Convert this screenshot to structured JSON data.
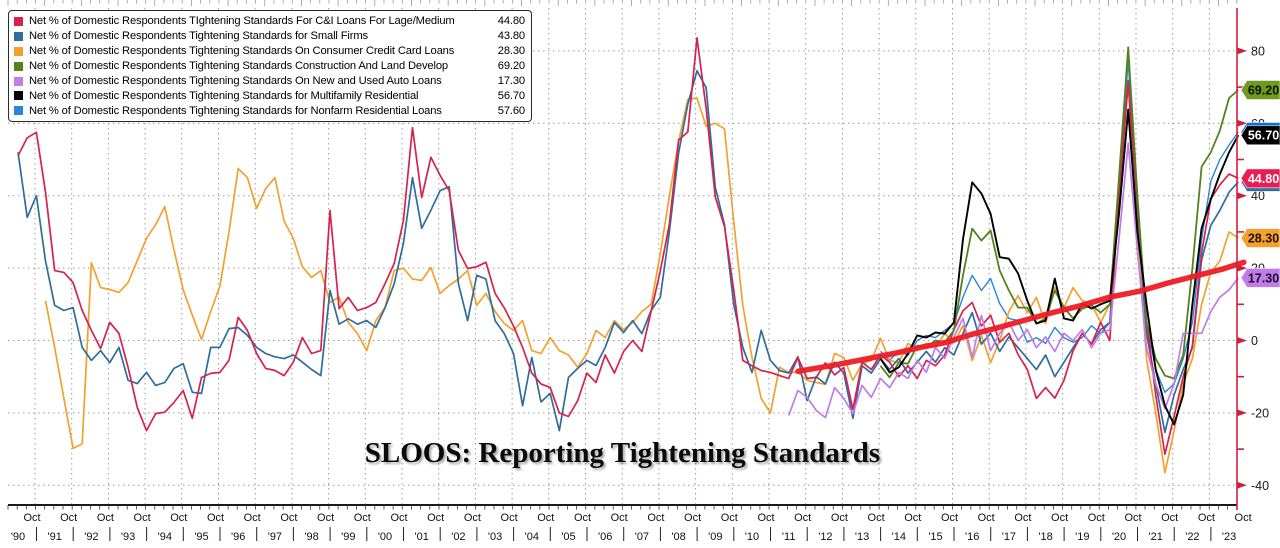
{
  "header": {
    "title": "SLOOS: Reporting Tightening Standards"
  },
  "legend": {
    "items": [
      {
        "label": "Net % of Domestic Respondents TIghtening Standards For C&I Loans For Lage/Medium",
        "value": "44.80",
        "color": "#d6224c"
      },
      {
        "label": "Net % of Domestic Respondents Tightening Standards for Small Firms",
        "value": "43.80",
        "color": "#2e6d9e"
      },
      {
        "label": "Net % of Domestic Respondents Tightening Standards On Consumer Credit Card Loans",
        "value": "28.30",
        "color": "#f2a12e"
      },
      {
        "label": "Net % of Domestic Respondents Tightening Standards Construction And Land Develop",
        "value": "69.20",
        "color": "#55821e"
      },
      {
        "label": "Net % of Domestic Respondents Tightening Standards On New and Used Auto Loans",
        "value": "17.30",
        "color": "#c07ce8"
      },
      {
        "label": "Net % of Domestic Respondents Tightening Standards for Multifamily Residential",
        "value": "56.70",
        "color": "#000000"
      },
      {
        "label": "Net % of Domestic Respondents Tightening Standards for Nonfarm Residential Loans",
        "value": "57.60",
        "color": "#2a85d8"
      }
    ]
  },
  "chart_data": {
    "type": "line",
    "title": "SLOOS: Reporting Tightening Standards",
    "x_axis": {
      "month_label": "Oct",
      "years": [
        "'90",
        "'91",
        "'92",
        "'93",
        "'94",
        "'95",
        "'96",
        "'97",
        "'98",
        "'99",
        "'00",
        "'01",
        "'02",
        "'03",
        "'04",
        "'05",
        "'06",
        "'07",
        "'08",
        "'09",
        "'10",
        "'11",
        "'12",
        "'13",
        "'14",
        "'15",
        "'16",
        "'17",
        "'18",
        "'19",
        "'20",
        "'21",
        "'22",
        "'23"
      ]
    },
    "y_axis": {
      "ticks": [
        80,
        60,
        40,
        20,
        0,
        -20,
        -40
      ],
      "minor_ticks": [
        70,
        50,
        30,
        10,
        -10,
        -30
      ],
      "range": [
        -45,
        92
      ]
    },
    "x_range": [
      1990.25,
      2023.75
    ],
    "series": [
      {
        "name": "nonfarm-residential",
        "color": "#2a85d8",
        "width": 1.4,
        "start": 2013.75,
        "step": 0.25,
        "values": [
          -3,
          -5.5,
          -2.8,
          -4.1,
          0,
          1.4,
          0.8,
          2.8,
          4.7,
          12,
          18,
          13.8,
          17.1,
          10.2,
          6.1,
          5.5,
          -0.5,
          0.8,
          -0.8,
          3.6,
          0.8,
          -0.5,
          0.8,
          4.1,
          1.9,
          5,
          42,
          77.4,
          35,
          5,
          -8,
          -14.3,
          -12,
          -5,
          5,
          28,
          44,
          50,
          54,
          57.6
        ]
      },
      {
        "name": "consumer-credit-card",
        "color": "#f2a12e",
        "width": 1.7,
        "start": 1991.0,
        "step": 0.25,
        "values": [
          11,
          -2,
          -16,
          -29.8,
          -28.5,
          21.5,
          14.6,
          14.1,
          13.3,
          16,
          22.1,
          28.2,
          32,
          37,
          25,
          14,
          7,
          0.3,
          8,
          15,
          30,
          47.5,
          45,
          36.5,
          42,
          45,
          33,
          28.2,
          20.4,
          17.4,
          19.3,
          10.5,
          12,
          5,
          1.9,
          -2.8,
          5.5,
          9.1,
          19.3,
          20,
          17,
          16.6,
          20.2,
          13,
          15.2,
          17,
          19.3,
          9.7,
          13,
          8,
          4.7,
          2.8,
          5.5,
          -2.8,
          -3.6,
          0.8,
          -2.8,
          -4,
          -7.4,
          -3.6,
          2.8,
          0.8,
          5.5,
          3,
          5,
          8,
          10,
          24,
          40,
          55,
          66.6,
          67,
          59.2,
          60,
          58.5,
          33,
          9.7,
          -4.7,
          -16,
          -20,
          -7.4,
          -8.8,
          -8.8,
          -11,
          -11.6,
          -12.1,
          -3.6,
          -4.7,
          -11,
          -6.4,
          -5.5,
          0.6,
          -5.5,
          -6.1,
          -0.8,
          -2.8,
          -0.8,
          -1.9,
          1.9,
          -0.6,
          4.1,
          -5.5,
          1.4,
          -6.1,
          0,
          8,
          12.4,
          7.7,
          11.9,
          4.7,
          14.6,
          9.1,
          14.6,
          11,
          10,
          5,
          10,
          39,
          71.5,
          30,
          -5,
          -20,
          -36.5,
          -25,
          -12,
          -5,
          10,
          18.8,
          22,
          30,
          28.3
        ]
      },
      {
        "name": "small-firms",
        "color": "#2e6d9e",
        "width": 1.7,
        "start": 1990.25,
        "step": 0.25,
        "values": [
          52,
          34,
          40,
          22,
          9.7,
          8.3,
          9.1,
          -1.9,
          -5.5,
          -2.8,
          -6.1,
          -1.9,
          -11,
          -11.9,
          -8.8,
          -12.4,
          -11.6,
          -7.7,
          -6.4,
          -14.3,
          -14.6,
          -1.9,
          -1.9,
          3.3,
          3.6,
          1.4,
          -1.9,
          -3.6,
          -4.5,
          -5,
          -4,
          -6,
          -8,
          -9.7,
          13.8,
          4.5,
          6,
          4.5,
          5.5,
          3.6,
          9,
          15.7,
          26.8,
          45,
          31,
          36,
          41.4,
          42.5,
          15.7,
          5.5,
          18,
          17,
          5.5,
          1.9,
          -3.6,
          -18,
          -4.7,
          -17,
          -14.6,
          -24.9,
          -10.2,
          -7.7,
          -5.5,
          -6.9,
          -1.9,
          5,
          2.2,
          5.5,
          1.9,
          8.3,
          11.9,
          30.2,
          51.8,
          65.3,
          74.5,
          69.9,
          42.3,
          32,
          10,
          -1.9,
          -8.8,
          2.8,
          -5.5,
          -8.3,
          -9,
          -4.5,
          -16.6,
          -10,
          -12,
          -6,
          -9,
          -21.5,
          -7,
          -9,
          -5,
          -8,
          -5,
          -9,
          -6,
          -3,
          -6,
          -2,
          -4,
          2,
          7.7,
          -1,
          2,
          -3,
          1,
          -2,
          -5,
          -8,
          -4,
          -10,
          -6,
          -2,
          2,
          -1,
          3,
          5,
          39.7,
          71.8,
          35,
          2,
          -12,
          -25.4,
          -15,
          -8,
          -2,
          22.2,
          31.8,
          36,
          41,
          43.8
        ]
      },
      {
        "name": "ci-large-medium",
        "color": "#d6224c",
        "width": 1.7,
        "start": 1990.25,
        "step": 0.25,
        "values": [
          51,
          56,
          57.5,
          41,
          19.3,
          18.8,
          16,
          8.3,
          2.8,
          -2.2,
          5,
          2,
          -7.4,
          -18.5,
          -24.9,
          -20.2,
          -19.8,
          -17.1,
          -13.8,
          -21.5,
          -10.2,
          -9.1,
          -8.8,
          -5.5,
          6.4,
          2.8,
          -3.6,
          -7.7,
          -8.3,
          -9.7,
          -6,
          0.8,
          -3.6,
          -2.8,
          35.9,
          8.8,
          11.9,
          8.3,
          9.1,
          10.5,
          15.7,
          21.3,
          33.1,
          58.8,
          39.5,
          50.6,
          45.6,
          41.4,
          24.9,
          19.9,
          20.4,
          21.6,
          13,
          9,
          4,
          -1.9,
          -9,
          -12,
          -13,
          -20,
          -21,
          -16.6,
          -9,
          -11.6,
          -4,
          -9,
          -3,
          0,
          -3,
          8,
          19.2,
          32.2,
          55.4,
          57.6,
          83.6,
          64.2,
          39.6,
          31.5,
          14,
          -5.5,
          -7,
          -8.3,
          -8.8,
          -9.7,
          -10.5,
          -4.7,
          -10.5,
          -10.2,
          -6.2,
          -9.5,
          -7.5,
          -19,
          -6,
          -8,
          -4,
          -6,
          -10,
          -7,
          -10.5,
          -5.5,
          -7,
          -4,
          3,
          8.2,
          10.5,
          4,
          7,
          -0.5,
          2,
          -3.9,
          -8,
          -16,
          -13,
          -15.9,
          -11,
          -2.8,
          2,
          -1,
          5,
          0,
          41.5,
          71.2,
          37.7,
          5.5,
          -15,
          -31.4,
          -21,
          -10,
          -1.5,
          24.2,
          39.1,
          43,
          46,
          44.8
        ]
      },
      {
        "name": "construction-land",
        "color": "#55821e",
        "width": 1.8,
        "start": 2013.75,
        "step": 0.25,
        "values": [
          -7,
          -10.2,
          -6.1,
          -6.4,
          -1.4,
          -1.9,
          0,
          -0.5,
          2.8,
          18,
          30.9,
          27.6,
          30.4,
          19.3,
          13.8,
          9.1,
          9.1,
          4.7,
          6.1,
          13.8,
          9.1,
          6.1,
          8.8,
          9.7,
          7.7,
          10,
          45,
          81,
          40,
          5,
          -5,
          -9.7,
          -10.5,
          -4,
          20,
          48,
          52,
          58,
          67,
          69.2
        ]
      },
      {
        "name": "auto-loans",
        "color": "#c07ce8",
        "width": 1.7,
        "start": 2011.25,
        "step": 0.25,
        "values": [
          -20.7,
          -13.8,
          -15.7,
          -19.3,
          -21.3,
          -13,
          -16,
          -20.2,
          -12.4,
          -15.7,
          -10.5,
          -13,
          -8.8,
          -10.5,
          -5.5,
          -8.8,
          -1.9,
          -5,
          1,
          6.1,
          -4.7,
          6.9,
          -2.8,
          2,
          5,
          0,
          3,
          -2,
          1,
          -3,
          2,
          0,
          3,
          -2,
          2,
          3,
          28,
          54.5,
          25,
          -2,
          -12,
          -18.8,
          -12,
          2,
          2,
          2,
          8,
          12,
          14,
          17.3
        ]
      },
      {
        "name": "multifamily",
        "color": "#000000",
        "width": 1.9,
        "start": 2013.75,
        "step": 0.25,
        "values": [
          -5,
          -8.8,
          -7.4,
          -3.6,
          1.4,
          0.8,
          2.2,
          1.9,
          5,
          28,
          43.7,
          40.6,
          35,
          23,
          22.6,
          18.5,
          11,
          4.7,
          5.5,
          17.1,
          6.1,
          5.5,
          10.2,
          8.8,
          10,
          11,
          35,
          63.8,
          30,
          10,
          -8,
          -18,
          -23.2,
          -15,
          10,
          31,
          39,
          46,
          52,
          56.7
        ]
      }
    ],
    "trend": {
      "name": "tightening-trend-line",
      "color": "#ee1c25",
      "width": 5.5,
      "points": [
        [
          2011.5,
          -8.5
        ],
        [
          2012.5,
          -6.8
        ],
        [
          2013.5,
          -4.8
        ],
        [
          2014.2,
          -3.4
        ],
        [
          2014.8,
          -2.0
        ],
        [
          2015.5,
          -0.6
        ],
        [
          2016.2,
          1.6
        ],
        [
          2016.9,
          3.4
        ],
        [
          2017.6,
          5.4
        ],
        [
          2018.4,
          7.6
        ],
        [
          2019.2,
          9.6
        ],
        [
          2020.0,
          12.0
        ],
        [
          2020.8,
          13.6
        ],
        [
          2021.6,
          15.9
        ],
        [
          2022.4,
          18.0
        ],
        [
          2023.1,
          19.8
        ],
        [
          2023.65,
          21.6
        ]
      ]
    },
    "badges": [
      {
        "label": "69.20",
        "value": 69.2,
        "bg": "#6f9a1d",
        "fg": "#0b1400"
      },
      {
        "label": "57.60",
        "value": 57.6,
        "bg": "#0e6fd8",
        "fg": "#ffffff"
      },
      {
        "label": "56.70",
        "value": 56.7,
        "bg": "#000000",
        "fg": "#ffffff"
      },
      {
        "label": "43.80",
        "value": 43.8,
        "bg": "#2e6d9e",
        "fg": "#ffffff"
      },
      {
        "label": "44.80",
        "value": 44.8,
        "bg": "#e91e50",
        "fg": "#ffffff"
      },
      {
        "label": "28.30",
        "value": 28.3,
        "bg": "#f2a12e",
        "fg": "#231200"
      },
      {
        "label": "17.30",
        "value": 17.3,
        "bg": "#c07ce8",
        "fg": "#1d0b2e"
      }
    ],
    "colors": {
      "axis": "#d02040",
      "grid": "#9a9a9a",
      "x_labels": "#111111"
    }
  }
}
